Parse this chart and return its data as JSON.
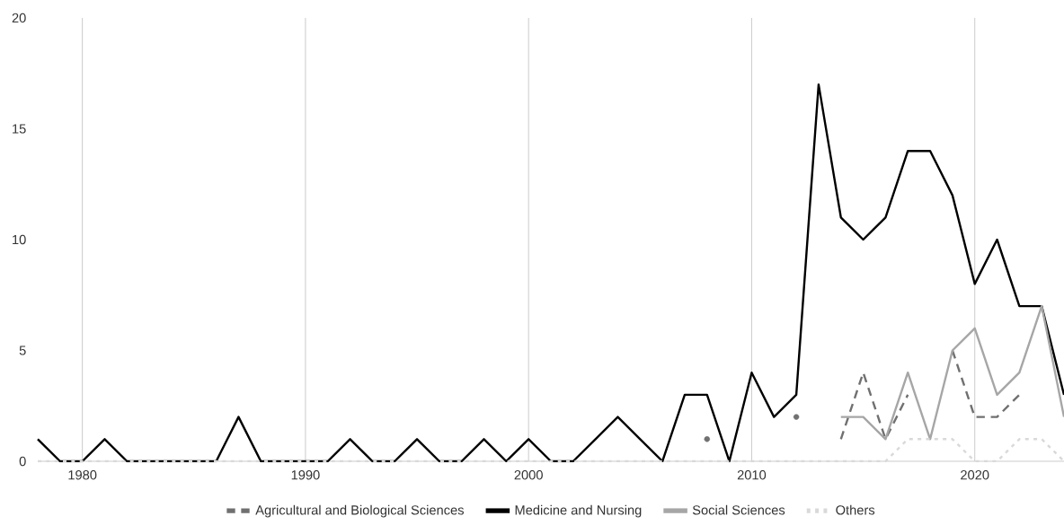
{
  "chart_data": {
    "type": "line",
    "x": [
      1978,
      1979,
      1980,
      1981,
      1982,
      1983,
      1984,
      1985,
      1986,
      1987,
      1988,
      1989,
      1990,
      1991,
      1992,
      1993,
      1994,
      1995,
      1996,
      1997,
      1998,
      1999,
      2000,
      2001,
      2002,
      2003,
      2004,
      2005,
      2006,
      2007,
      2008,
      2009,
      2010,
      2011,
      2012,
      2013,
      2014,
      2015,
      2016,
      2017,
      2018,
      2019,
      2020,
      2021,
      2022,
      2023,
      2024
    ],
    "series": [
      {
        "name": "Agricultural and Biological Sciences",
        "color": "#707070",
        "line_style": "dashed",
        "values": [
          null,
          null,
          null,
          null,
          null,
          null,
          null,
          null,
          null,
          null,
          null,
          null,
          null,
          null,
          null,
          null,
          null,
          null,
          null,
          null,
          null,
          null,
          null,
          null,
          null,
          null,
          null,
          null,
          null,
          null,
          1,
          null,
          null,
          null,
          2,
          null,
          1,
          4,
          1,
          3,
          null,
          5,
          2,
          2,
          3,
          null,
          null
        ]
      },
      {
        "name": "Medicine and Nursing",
        "color": "#000000",
        "line_style": "solid",
        "values": [
          1,
          0,
          0,
          1,
          0,
          0,
          0,
          0,
          0,
          2,
          0,
          0,
          0,
          0,
          1,
          0,
          0,
          1,
          0,
          0,
          1,
          0,
          1,
          0,
          0,
          1,
          2,
          1,
          0,
          3,
          3,
          0,
          4,
          2,
          3,
          17,
          11,
          10,
          11,
          14,
          14,
          12,
          8,
          10,
          7,
          7,
          3
        ]
      },
      {
        "name": "Social Sciences",
        "color": "#a6a6a6",
        "line_style": "solid",
        "values": [
          null,
          null,
          null,
          null,
          null,
          null,
          null,
          null,
          null,
          null,
          null,
          null,
          null,
          null,
          null,
          null,
          null,
          null,
          null,
          null,
          null,
          null,
          null,
          null,
          null,
          null,
          null,
          null,
          null,
          null,
          null,
          null,
          null,
          null,
          null,
          null,
          2,
          2,
          1,
          4,
          1,
          5,
          6,
          3,
          4,
          7,
          2
        ]
      },
      {
        "name": "Others",
        "color": "#d9d9d9",
        "line_style": "dotted",
        "values": [
          0,
          0,
          0,
          0,
          0,
          0,
          0,
          0,
          0,
          0,
          0,
          0,
          0,
          0,
          0,
          0,
          0,
          0,
          0,
          0,
          0,
          0,
          0,
          0,
          0,
          0,
          0,
          0,
          0,
          0,
          0,
          0,
          0,
          0,
          0,
          0,
          0,
          0,
          0,
          1,
          1,
          1,
          0,
          0,
          1,
          1,
          0
        ]
      }
    ],
    "xlim": [
      1978,
      2024
    ],
    "xticks": [
      1980,
      1990,
      2000,
      2010,
      2020
    ],
    "ylim": [
      0,
      20
    ],
    "yticks": [
      0,
      5,
      10,
      15,
      20
    ],
    "grid": "x",
    "legend": "bottom",
    "marker": "none"
  }
}
